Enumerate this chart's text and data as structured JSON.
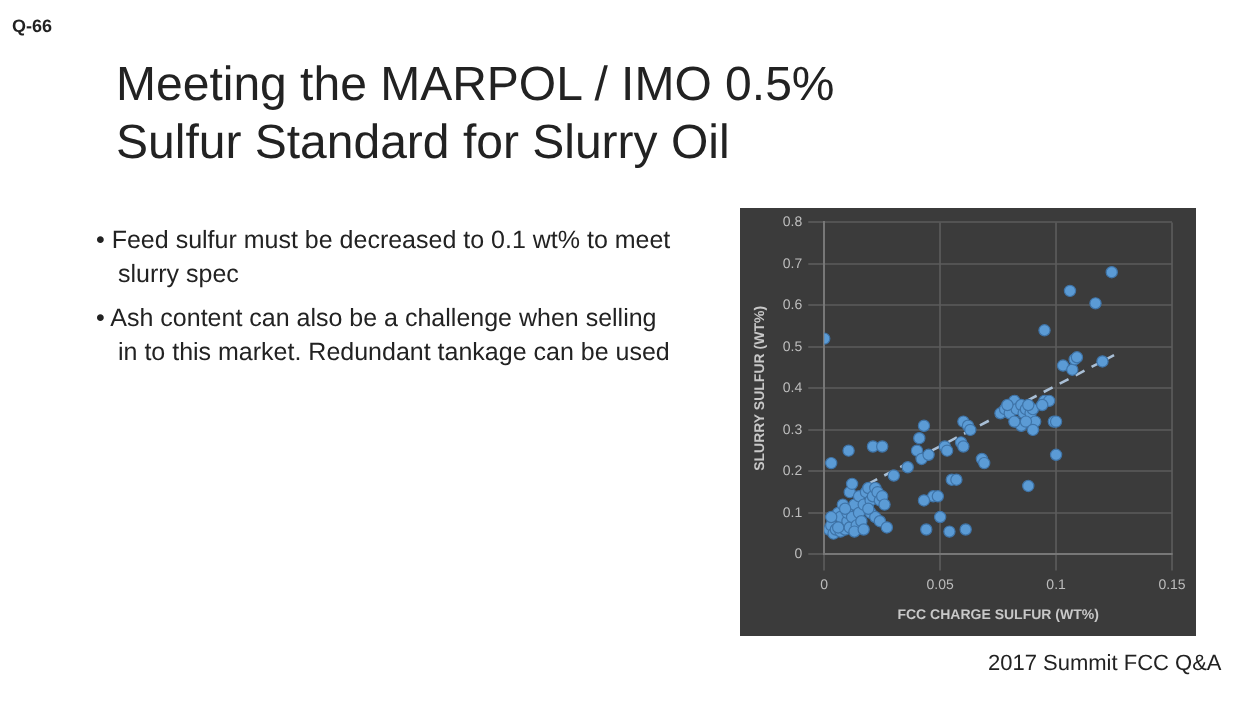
{
  "chart_data": {
    "type": "scatter",
    "title": "Meeting the MARPOL / IMO 0.5% Sulfur Standard for Slurry Oil",
    "annotations": [
      "Q-66",
      "• Feed sulfur must be decreased to 0.1 wt% to meet slurry spec",
      "• Ash content can also be a challenge when selling in to this market.  Redundant tankage can be used",
      "2017 Summit FCC Q&A"
    ],
    "xlabel": "FCC CHARGE SULFUR (WT%)",
    "ylabel": "SLURRY SULFUR (WT%)",
    "xlim": [
      0,
      0.15
    ],
    "xticks": [
      0,
      0.05,
      0.1,
      0.15
    ],
    "ylim": [
      0,
      0.8
    ],
    "yticks": [
      0,
      0.1,
      0.2,
      0.3,
      0.4,
      0.5,
      0.6,
      0.7,
      0.8
    ],
    "grid": true,
    "legend": false,
    "marker": "circle",
    "series": [
      {
        "type": "scatter",
        "color": "#5b9bd5",
        "x": [
          0,
          0.003,
          0.0105,
          0.021,
          0.025,
          0.002,
          0.003,
          0.004,
          0.005,
          0.006,
          0.007,
          0.007,
          0.008,
          0.009,
          0.01,
          0.01,
          0.011,
          0.011,
          0.012,
          0.012,
          0.013,
          0.014,
          0.015,
          0.015,
          0.016,
          0.017,
          0.018,
          0.019,
          0.02,
          0.02,
          0.021,
          0.022,
          0.022,
          0.023,
          0.024,
          0.024,
          0.025,
          0.026,
          0.027,
          0.006,
          0.009,
          0.013,
          0.003,
          0.017,
          0.019,
          0.03,
          0.036,
          0.04,
          0.041,
          0.043,
          0.042,
          0.045,
          0.047,
          0.043,
          0.044,
          0.05,
          0.052,
          0.053,
          0.055,
          0.057,
          0.054,
          0.061,
          0.059,
          0.06,
          0.062,
          0.063,
          0.06,
          0.068,
          0.069,
          0.049,
          0.076,
          0.078,
          0.08,
          0.082,
          0.083,
          0.085,
          0.086,
          0.087,
          0.089,
          0.09,
          0.091,
          0.085,
          0.087,
          0.082,
          0.09,
          0.079,
          0.088,
          0.088,
          0.099,
          0.1,
          0.1,
          0.095,
          0.097,
          0.094,
          0.095,
          0.103,
          0.107,
          0.108,
          0.109,
          0.106,
          0.117,
          0.12,
          0.124
        ],
        "values": [
          0.52,
          0.22,
          0.25,
          0.26,
          0.26,
          0.06,
          0.07,
          0.05,
          0.06,
          0.1,
          0.055,
          0.09,
          0.12,
          0.06,
          0.08,
          0.1,
          0.065,
          0.15,
          0.17,
          0.09,
          0.12,
          0.07,
          0.1,
          0.14,
          0.08,
          0.12,
          0.15,
          0.16,
          0.13,
          0.1,
          0.14,
          0.09,
          0.16,
          0.15,
          0.13,
          0.08,
          0.14,
          0.12,
          0.065,
          0.065,
          0.11,
          0.055,
          0.09,
          0.06,
          0.11,
          0.19,
          0.21,
          0.25,
          0.28,
          0.31,
          0.23,
          0.24,
          0.14,
          0.13,
          0.06,
          0.09,
          0.26,
          0.25,
          0.18,
          0.18,
          0.055,
          0.06,
          0.27,
          0.32,
          0.31,
          0.3,
          0.26,
          0.23,
          0.22,
          0.14,
          0.34,
          0.35,
          0.34,
          0.37,
          0.35,
          0.36,
          0.34,
          0.35,
          0.34,
          0.35,
          0.32,
          0.31,
          0.32,
          0.32,
          0.3,
          0.36,
          0.36,
          0.165,
          0.32,
          0.32,
          0.24,
          0.37,
          0.37,
          0.36,
          0.54,
          0.455,
          0.445,
          0.47,
          0.475,
          0.635,
          0.605,
          0.465,
          0.68
        ]
      },
      {
        "type": "line",
        "color": "#a9bfd6",
        "line_style": "dashed",
        "marker": "none",
        "x": [
          0.019,
          0.125
        ],
        "values": [
          0.17,
          0.48
        ]
      }
    ]
  }
}
